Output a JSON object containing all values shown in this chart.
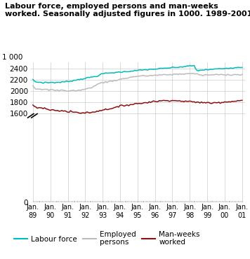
{
  "title": "Labour force, employed persons and man-weeks\nworked. Seasonally adjusted figures in 1000. 1989-2001",
  "ylabel": "1 000",
  "colors": {
    "labour_force": "#00BBBB",
    "employed": "#BBBBBB",
    "man_weeks": "#8B1010"
  },
  "yticks": [
    0,
    1600,
    1800,
    2000,
    2200,
    2400
  ],
  "xtick_labels": [
    "Jan.\n89",
    "Jan.\n90",
    "Jan.\n91",
    "Jan.\n92",
    "Jan.\n93",
    "Jan.\n94",
    "Jan.\n95",
    "Jan.\n96",
    "Jan.\n97",
    "Jan.\n98",
    "Jan.\n99",
    "Jan.\n00",
    "Jan.\n01"
  ],
  "labour_force": [
    2200,
    2183,
    2163,
    2155,
    2162,
    2158,
    2153,
    2148,
    2153,
    2158,
    2153,
    2148,
    2153,
    2160,
    2155,
    2150,
    2153,
    2158,
    2155,
    2160,
    2163,
    2165,
    2168,
    2172,
    2175,
    2178,
    2183,
    2188,
    2193,
    2198,
    2203,
    2208,
    2213,
    2218,
    2223,
    2228,
    2233,
    2238,
    2243,
    2248,
    2253,
    2258,
    2263,
    2268,
    2278,
    2290,
    2300,
    2310,
    2318,
    2318,
    2322,
    2322,
    2325,
    2328,
    2330,
    2333,
    2336,
    2338,
    2340,
    2342,
    2344,
    2346,
    2348,
    2350,
    2353,
    2356,
    2359,
    2362,
    2365,
    2368,
    2370,
    2372,
    2374,
    2376,
    2379,
    2381,
    2383,
    2385,
    2387,
    2389,
    2391,
    2393,
    2395,
    2397,
    2399,
    2401,
    2403,
    2405,
    2407,
    2409,
    2411,
    2414,
    2417,
    2419,
    2421,
    2423,
    2425,
    2427,
    2429,
    2431,
    2434,
    2437,
    2440,
    2443,
    2446,
    2449,
    2452,
    2455,
    2458,
    2461,
    2364,
    2368,
    2372,
    2375,
    2377,
    2379,
    2381,
    2383,
    2385,
    2387,
    2389,
    2391,
    2393,
    2395,
    2397,
    2399,
    2401,
    2403,
    2405,
    2407,
    2409,
    2411,
    2413,
    2415,
    2417,
    2419,
    2421,
    2423,
    2425,
    2427,
    2429,
    2431
  ],
  "employed": [
    2100,
    2060,
    2038,
    2038,
    2043,
    2038,
    2035,
    2030,
    2028,
    2028,
    2022,
    2018,
    2018,
    2023,
    2020,
    2015,
    2012,
    2010,
    2008,
    2010,
    2012,
    2015,
    2012,
    2008,
    2005,
    2003,
    2003,
    2005,
    2010,
    2010,
    2007,
    2005,
    2005,
    2010,
    2015,
    2020,
    2025,
    2030,
    2035,
    2040,
    2045,
    2055,
    2065,
    2075,
    2085,
    2095,
    2110,
    2125,
    2140,
    2145,
    2153,
    2157,
    2160,
    2163,
    2165,
    2170,
    2175,
    2180,
    2185,
    2190,
    2195,
    2200,
    2205,
    2210,
    2215,
    2220,
    2225,
    2230,
    2235,
    2240,
    2245,
    2250,
    2255,
    2260,
    2263,
    2265,
    2267,
    2269,
    2271,
    2273,
    2273,
    2273,
    2273,
    2275,
    2277,
    2279,
    2280,
    2281,
    2283,
    2285,
    2286,
    2287,
    2288,
    2289,
    2290,
    2291,
    2292,
    2293,
    2294,
    2295,
    2297,
    2299,
    2301,
    2303,
    2303,
    2303,
    2303,
    2305,
    2307,
    2309,
    2311,
    2313,
    2313,
    2313,
    2313,
    2313,
    2313,
    2313,
    2313,
    2313,
    2280,
    2283,
    2285,
    2287,
    2288,
    2289,
    2290,
    2290,
    2290,
    2291,
    2292,
    2293,
    2294,
    2295,
    2295,
    2295,
    2295,
    2295,
    2295,
    2295,
    2295,
    2295,
    2295,
    2295,
    2295,
    2295,
    2295,
    2295,
    2295,
    2295,
    2295,
    2295
  ],
  "man_weeks": [
    1745,
    1725,
    1705,
    1695,
    1705,
    1695,
    1685,
    1680,
    1685,
    1690,
    1675,
    1665,
    1660,
    1665,
    1660,
    1655,
    1650,
    1645,
    1640,
    1645,
    1650,
    1655,
    1645,
    1635,
    1630,
    1625,
    1620,
    1625,
    1630,
    1625,
    1620,
    1615,
    1613,
    1610,
    1607,
    1605,
    1603,
    1610,
    1613,
    1615,
    1610,
    1607,
    1613,
    1620,
    1625,
    1630,
    1635,
    1640,
    1645,
    1653,
    1657,
    1660,
    1663,
    1670,
    1675,
    1680,
    1685,
    1690,
    1695,
    1700,
    1705,
    1710,
    1715,
    1725,
    1735,
    1740,
    1743,
    1745,
    1747,
    1750,
    1755,
    1757,
    1760,
    1765,
    1770,
    1773,
    1775,
    1777,
    1779,
    1781,
    1785,
    1790,
    1795,
    1800,
    1803,
    1805,
    1807,
    1810,
    1813,
    1815,
    1817,
    1819,
    1821,
    1823,
    1825,
    1827,
    1829,
    1831,
    1833,
    1835,
    1833,
    1830,
    1827,
    1825,
    1823,
    1821,
    1820,
    1819,
    1818,
    1817,
    1815,
    1813,
    1811,
    1809,
    1807,
    1805,
    1803,
    1801,
    1800,
    1799,
    1797,
    1795,
    1793,
    1791,
    1790,
    1788,
    1787,
    1786,
    1785,
    1785,
    1787,
    1789,
    1791,
    1793,
    1795,
    1797,
    1799,
    1801,
    1803,
    1805,
    1807,
    1809,
    1811,
    1813,
    1815,
    1817,
    1819,
    1821,
    1823,
    1825,
    1827,
    1829
  ]
}
